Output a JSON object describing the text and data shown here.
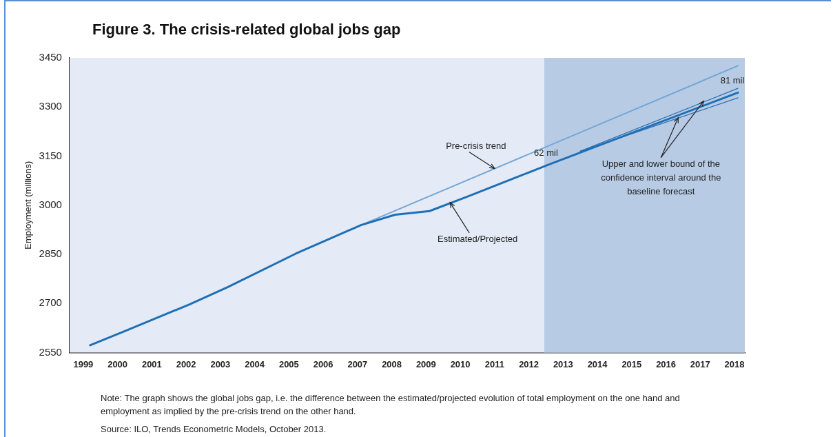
{
  "chart_data": {
    "type": "line",
    "title": "Figure 3. The crisis-related global jobs gap",
    "ylabel": "Employment (millions)",
    "xlim": [
      1998.6,
      2018.3
    ],
    "xticks": [
      1999,
      2000,
      2001,
      2002,
      2003,
      2004,
      2005,
      2006,
      2007,
      2008,
      2009,
      2010,
      2011,
      2012,
      2013,
      2014,
      2015,
      2016,
      2017,
      2018
    ],
    "ylim": [
      2550,
      3450
    ],
    "yticks": [
      2550,
      2700,
      2850,
      3000,
      3150,
      3300,
      3450
    ],
    "grid": false,
    "legend": false,
    "marker": "none",
    "line_style": "solid",
    "series": [
      {
        "color": "#1f6fb5",
        "x": [
          1999.2,
          2000.2,
          2002.1,
          2003.2,
          2005.2,
          2007.1,
          2008.1,
          2009.1,
          2010.2,
          2012.6,
          2018.1
        ],
        "values": [
          2572,
          2615,
          2697,
          2749,
          2852,
          2939,
          2971,
          2982,
          3026,
          3125,
          3344
        ]
      },
      {
        "color": "#74a6d4",
        "x": [
          2007.1,
          2018.1
        ],
        "values": [
          2939,
          3426
        ]
      },
      {
        "color": "#2e6db0",
        "x": [
          2013.5,
          2018.1
        ],
        "values": [
          3165,
          3357
        ]
      },
      {
        "color": "#2e6db0",
        "x": [
          2013.5,
          2018.1
        ],
        "values": [
          3165,
          3328
        ]
      }
    ],
    "bands": [
      {
        "axis": "x",
        "from": 2012.45,
        "to": 2018.3,
        "color": "#b7cbe5"
      }
    ],
    "annotations": [
      {
        "text": "Pre-crisis trend",
        "x": 2011,
        "y": 3112
      },
      {
        "text": "Estimated/Projected",
        "x": 2009.7,
        "y": 3008
      },
      {
        "text": "62 mil",
        "x": 2012.5,
        "y": 3158
      },
      {
        "text": "81 mil",
        "x": 2018.1,
        "y": 3426
      },
      {
        "text": "Upper and lower bound of the confidence interval around the baseline forecast",
        "x": 2017.1,
        "y": 3318
      },
      "Note: The graph shows the global jobs gap, i.e. the difference between the estimated/projected evolution of total employment on the one hand and employment as implied by the pre-crisis trend on the other hand.",
      "Source: ILO, Trends Econometric Models, October 2013."
    ]
  }
}
